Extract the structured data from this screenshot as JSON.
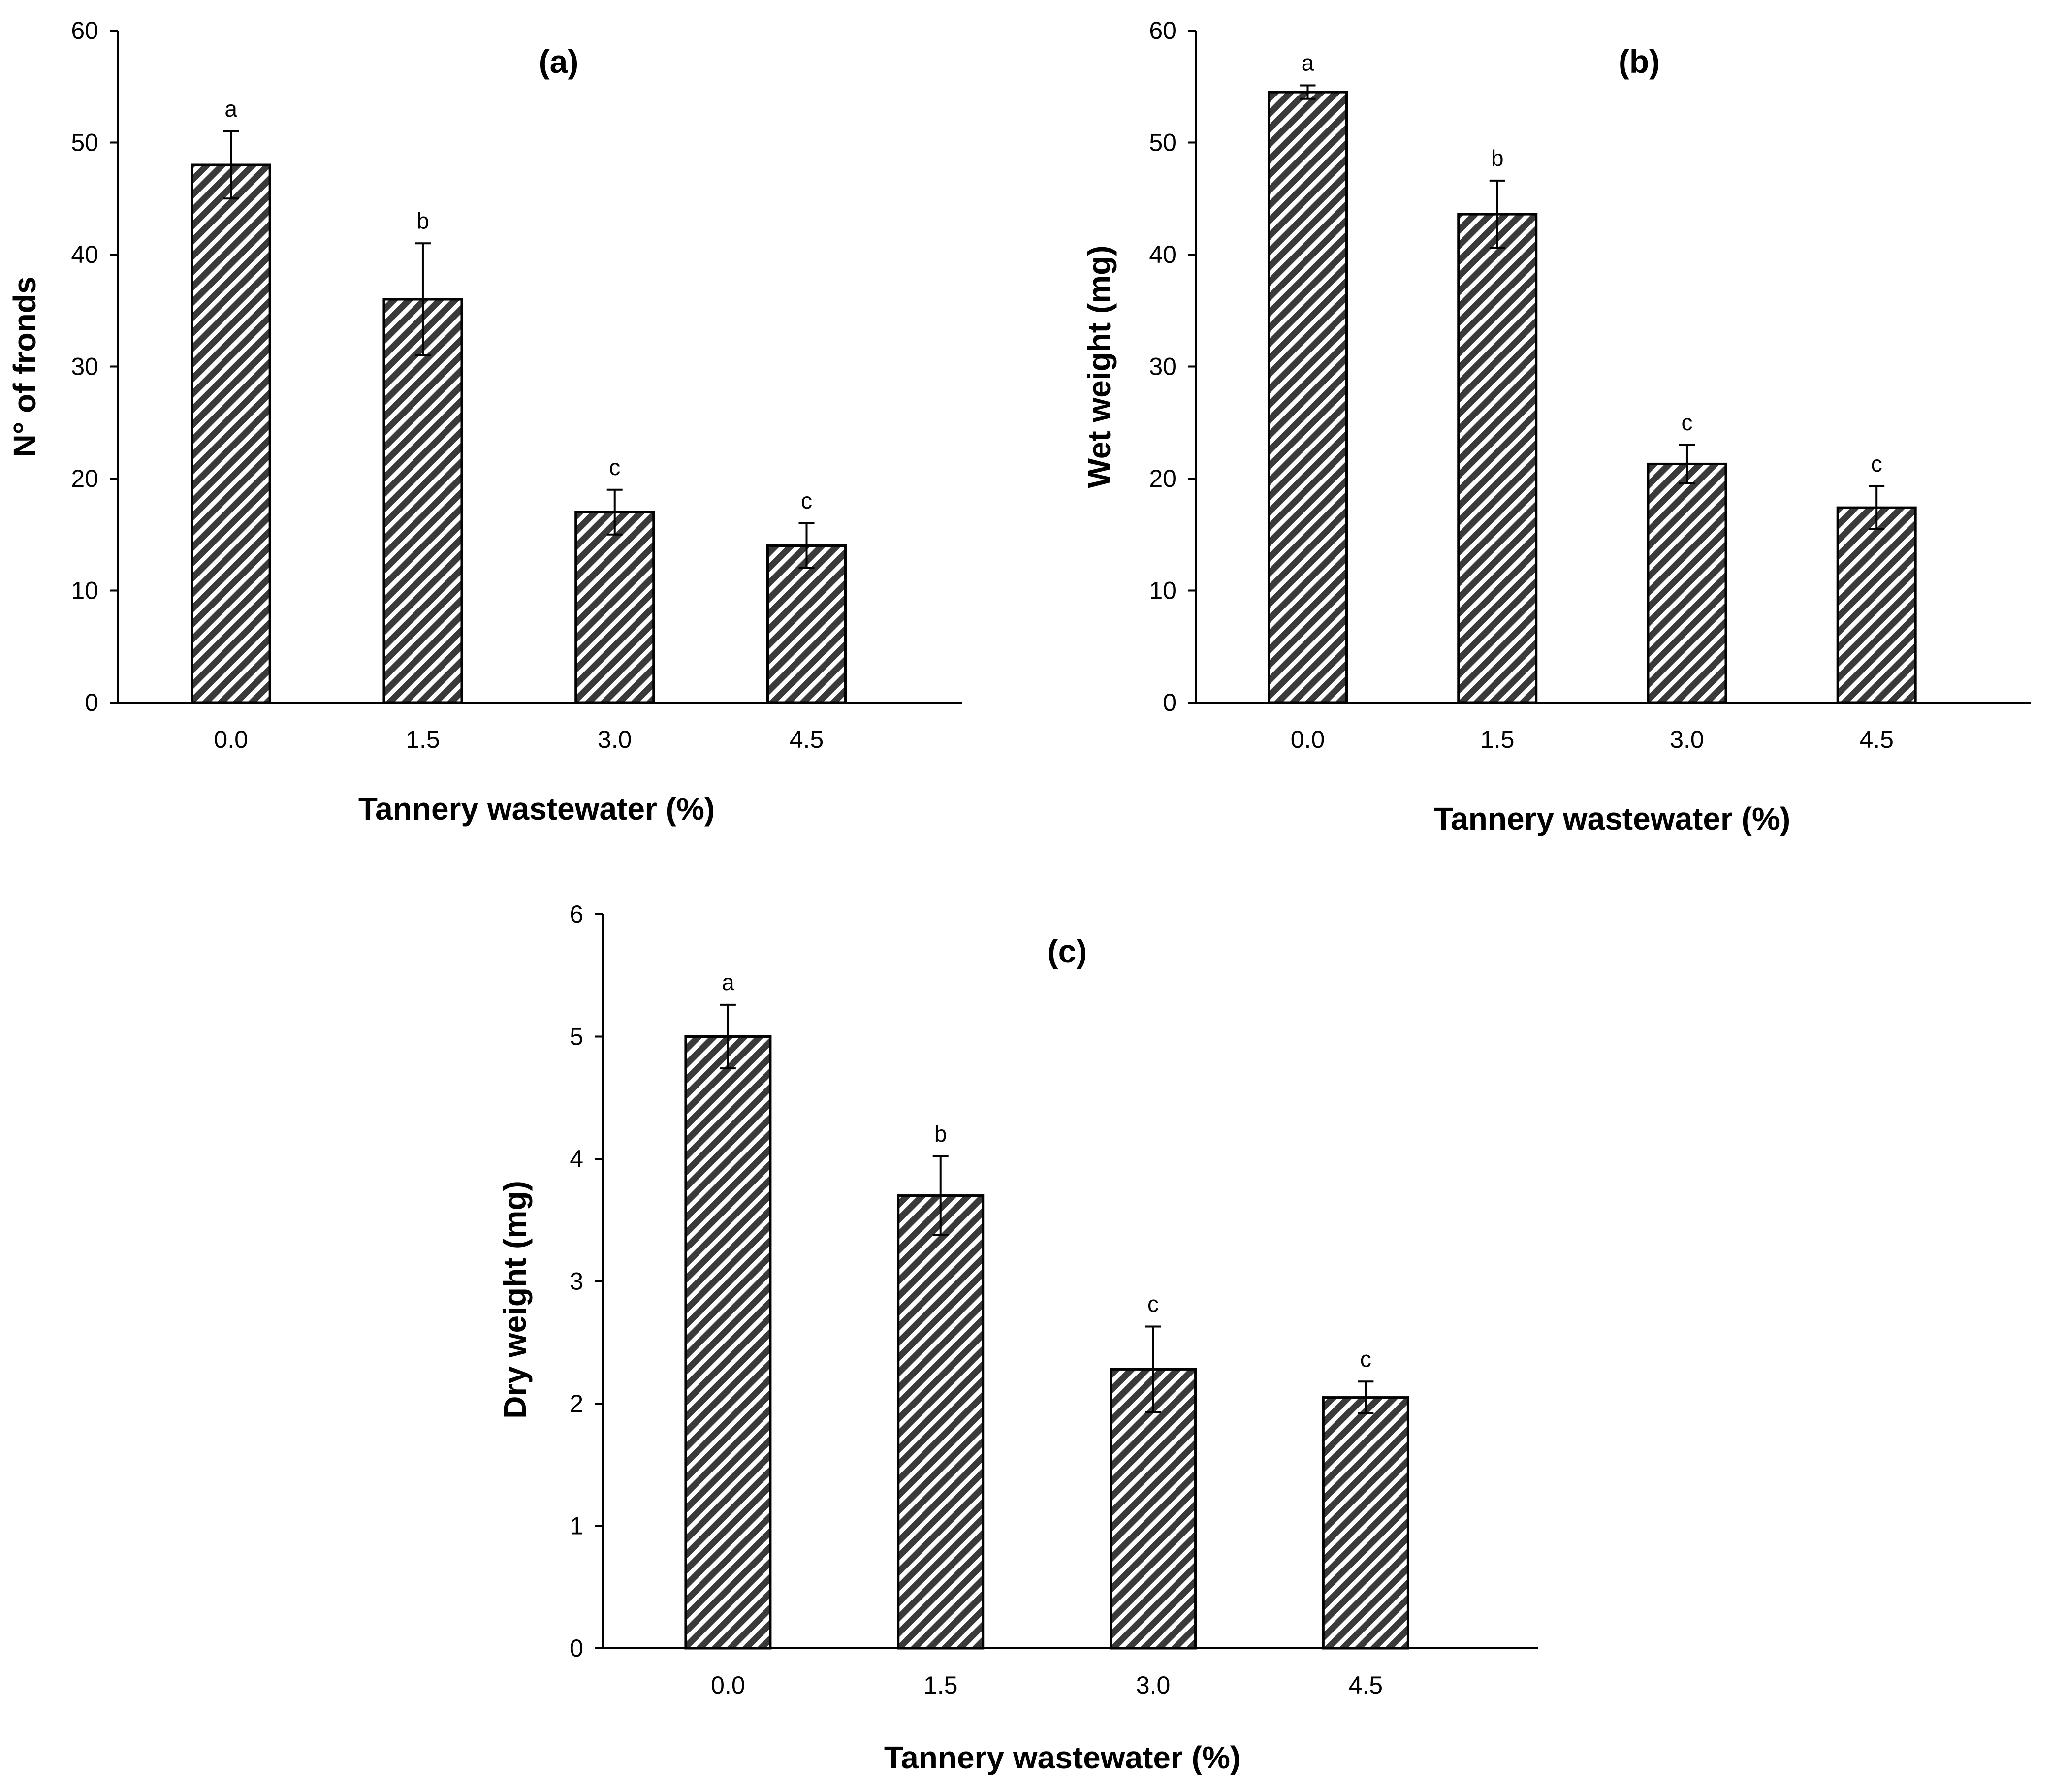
{
  "chart_data": [
    {
      "type": "bar",
      "panel_label": "(a)",
      "xlabel": "Tannery wastewater (%)",
      "ylabel": "N° of fronds",
      "ylim": [
        0,
        60
      ],
      "yticks": [
        0,
        10,
        20,
        30,
        40,
        50,
        60
      ],
      "categories": [
        "0.0",
        "1.5",
        "3.0",
        "4.5"
      ],
      "values": [
        48,
        36,
        17,
        14
      ],
      "errors": [
        3,
        5,
        2,
        2
      ],
      "significance": [
        "a",
        "b",
        "c",
        "c"
      ]
    },
    {
      "type": "bar",
      "panel_label": "(b)",
      "xlabel": "Tannery wastewater (%)",
      "ylabel": "Wet weight (mg)",
      "ylim": [
        0,
        60
      ],
      "yticks": [
        0,
        10,
        20,
        30,
        40,
        50,
        60
      ],
      "categories": [
        "0.0",
        "1.5",
        "3.0",
        "4.5"
      ],
      "values": [
        54.5,
        43.6,
        21.3,
        17.4
      ],
      "errors": [
        0.6,
        3.0,
        1.7,
        1.9
      ],
      "significance": [
        "a",
        "b",
        "c",
        "c"
      ]
    },
    {
      "type": "bar",
      "panel_label": "(c)",
      "xlabel": "Tannery wastewater (%)",
      "ylabel": "Dry weight (mg)",
      "ylim": [
        0,
        6
      ],
      "yticks": [
        0,
        1,
        2,
        3,
        4,
        5,
        6
      ],
      "categories": [
        "0.0",
        "1.5",
        "3.0",
        "4.5"
      ],
      "values": [
        5.0,
        3.7,
        2.28,
        2.05
      ],
      "errors": [
        0.26,
        0.32,
        0.35,
        0.13
      ],
      "significance": [
        "a",
        "b",
        "c",
        "c"
      ]
    }
  ]
}
